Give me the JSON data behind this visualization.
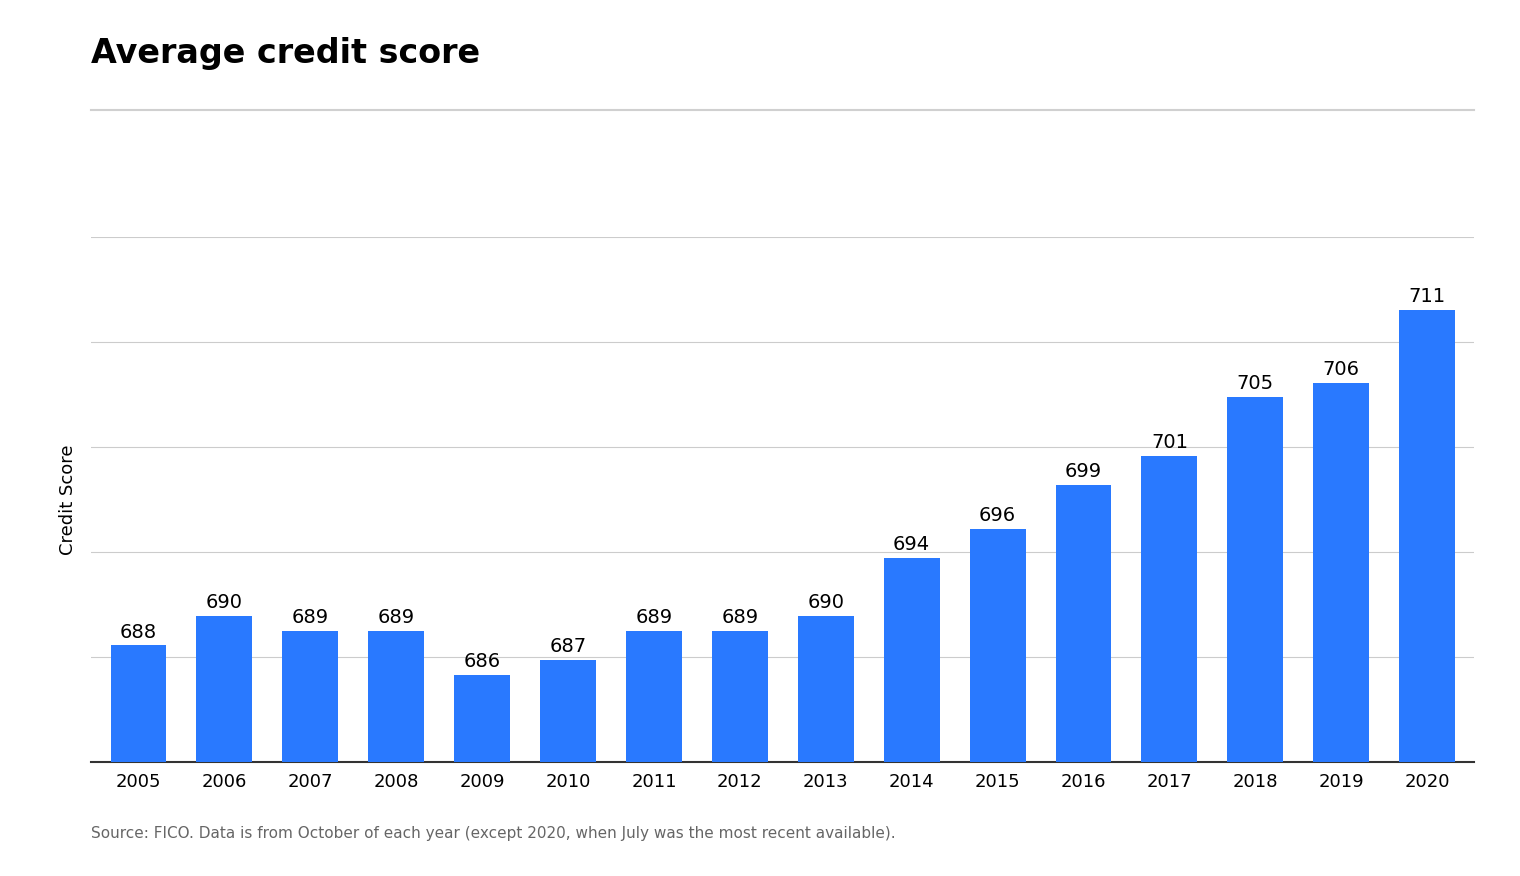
{
  "title": "Average credit score",
  "ylabel": "Credit Score",
  "source_text": "Source: FICO. Data is from October of each year (except 2020, when July was the most recent available).",
  "years": [
    2005,
    2006,
    2007,
    2008,
    2009,
    2010,
    2011,
    2012,
    2013,
    2014,
    2015,
    2016,
    2017,
    2018,
    2019,
    2020
  ],
  "scores": [
    688,
    690,
    689,
    689,
    686,
    687,
    689,
    689,
    690,
    694,
    696,
    699,
    701,
    705,
    706,
    711
  ],
  "bar_color": "#2979FF",
  "background_color": "#ffffff",
  "grid_color": "#cccccc",
  "separator_color": "#d0d0d0",
  "title_fontsize": 24,
  "ylabel_fontsize": 13,
  "tick_fontsize": 13,
  "annotation_fontsize": 14,
  "source_fontsize": 11,
  "ylim_min": 680,
  "ylim_max": 716,
  "bar_width": 0.65,
  "grid_y_values": [
    683,
    686,
    689,
    692,
    695,
    698,
    701,
    704,
    707,
    710,
    713
  ]
}
